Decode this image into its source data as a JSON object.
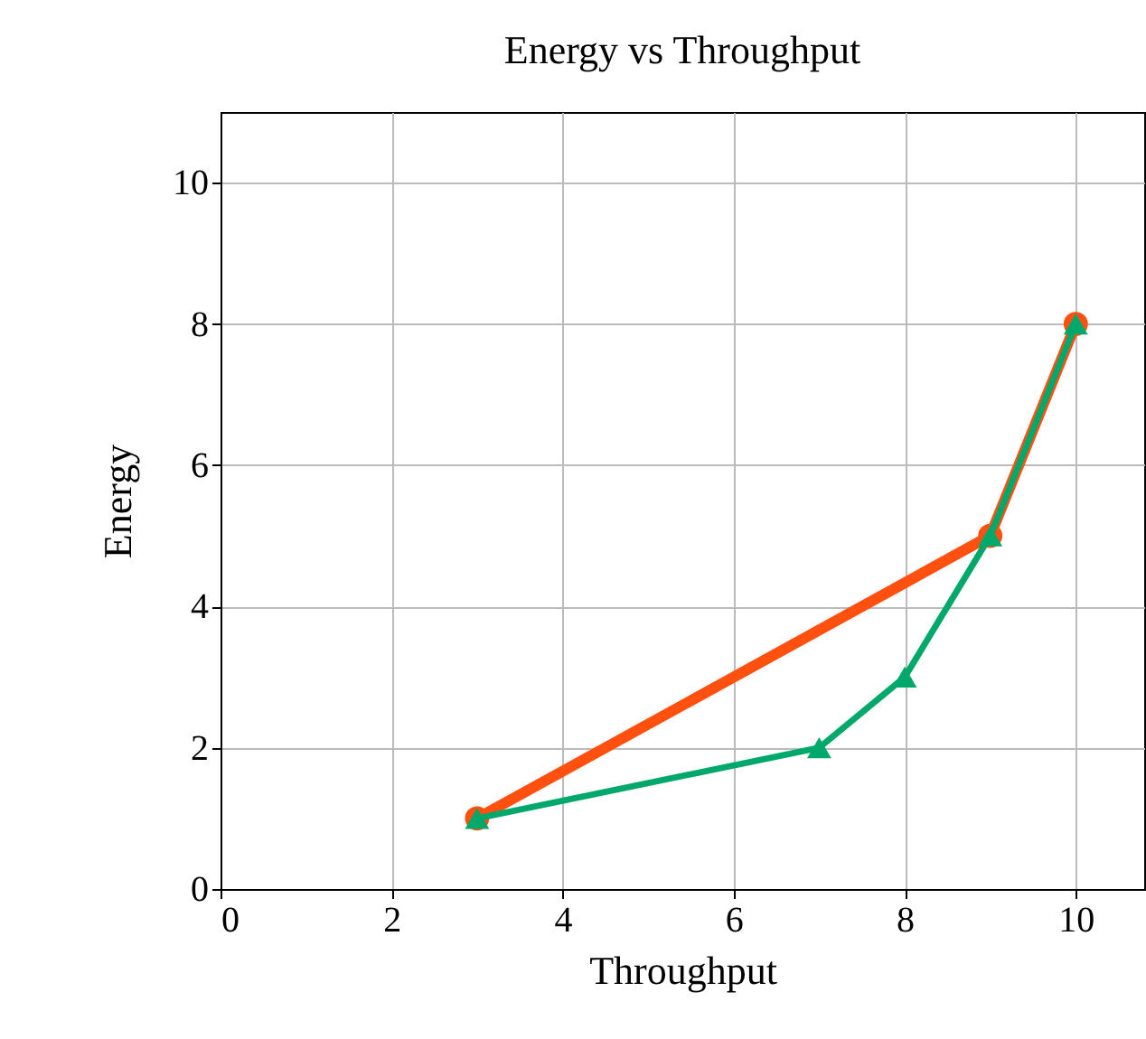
{
  "chart_data": {
    "type": "line",
    "title": "Energy vs Throughput",
    "xlabel": "Throughput",
    "ylabel": "Energy",
    "series": [
      {
        "color": "#ff5010",
        "x": [
          3,
          9,
          10
        ],
        "values": [
          1,
          5,
          8
        ],
        "marker": "circle"
      },
      {
        "color": "#00a86b",
        "x": [
          3,
          7,
          8,
          9,
          10
        ],
        "values": [
          1,
          2,
          3,
          5,
          8
        ],
        "marker": "triangle"
      }
    ],
    "xlim": [
      0,
      10.8
    ],
    "xticks": [
      0,
      2,
      4,
      6,
      8,
      10
    ],
    "ylim": [
      0,
      11
    ],
    "yticks": [
      0,
      2,
      4,
      6,
      8,
      10
    ],
    "grid": true
  }
}
